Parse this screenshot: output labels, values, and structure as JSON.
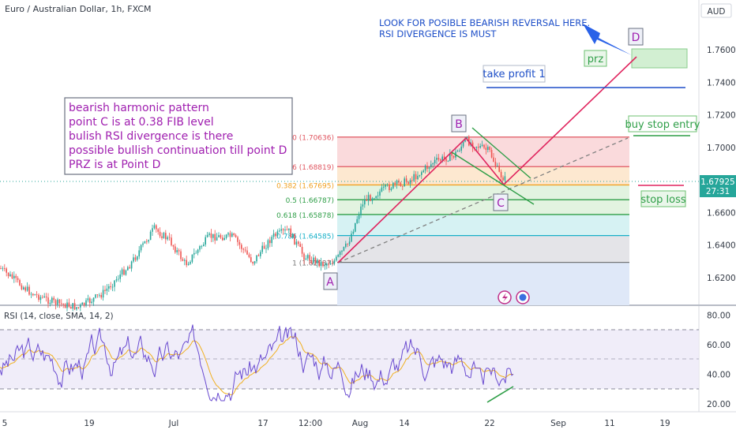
{
  "header": {
    "symbol_title": "Euro / Australian Dollar, 1h, FXCM",
    "currency": "AUD"
  },
  "price_axis": {
    "ticks": [
      "1.76000",
      "1.74000",
      "1.72000",
      "1.70000",
      "1.68000",
      "1.66000",
      "1.64000",
      "1.62000"
    ],
    "last_price": "1.67925",
    "countdown": "27:31"
  },
  "rsi_panel": {
    "label": "RSI (14, close, SMA, 14, 2)",
    "ticks": [
      "80.00",
      "60.00",
      "40.00",
      "20.00"
    ]
  },
  "time_axis": {
    "labels": [
      "5",
      "19",
      "Jul",
      "17",
      "12:00",
      "Aug",
      "14",
      "22",
      "Sep",
      "11",
      "19"
    ]
  },
  "annotations": {
    "analysis_note": [
      "bearish harmonic pattern",
      "point C is at 0.38 FIB level",
      "bulish RSI divergence is there",
      "possible bullish continuation till point D",
      "PRZ is at Point D"
    ],
    "reversal_note": [
      "LOOK FOR POSIBLE BEARISH REVERSAL HERE.",
      "RSI DIVERGENCE IS MUST"
    ],
    "prz": "prz",
    "take_profit": "take profit 1",
    "buy_stop": "buy stop entry",
    "stop_loss": "stop loss",
    "point_a": "A",
    "point_b": "B",
    "point_c": "C",
    "point_d": "D"
  },
  "fib_levels": [
    {
      "label": "0 (1.70636)",
      "price": 1.70636,
      "color": "#e05660"
    },
    {
      "label": "0.236 (1.68819)",
      "price": 1.68819,
      "color": "#e05660"
    },
    {
      "label": "0.382 (1.67695)",
      "price": 1.67695,
      "color": "#f0a020"
    },
    {
      "label": "0.5 (1.66787)",
      "price": 1.66787,
      "color": "#2e9e47"
    },
    {
      "label": "0.618 (1.65878)",
      "price": 1.65878,
      "color": "#2e9e47"
    },
    {
      "label": "0.786 (1.64585)",
      "price": 1.64585,
      "color": "#18b0c8"
    },
    {
      "label": "1 (1.62937)",
      "price": 1.62937,
      "color": "#777777"
    }
  ],
  "colors": {
    "candle_up": "#26a69a",
    "candle_down": "#ef5350",
    "pattern_line": "#e0245e",
    "rsi_line": "#6a4bd0",
    "rsi_ma": "#f0b020",
    "note_text": "#a020b0",
    "reversal_text": "#1e4fc8"
  }
}
